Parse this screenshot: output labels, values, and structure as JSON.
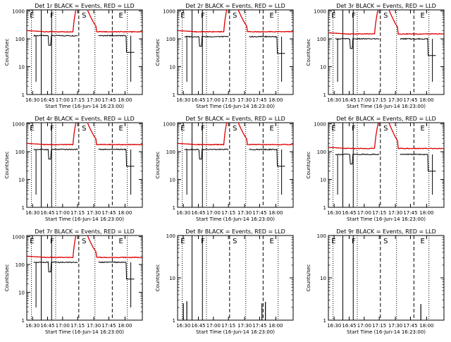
{
  "chart_data": [
    {
      "type": "line",
      "title": "Det 1r BLACK = Events, RED = LLD",
      "ylabel": "Counts/sec",
      "xlabel": "Start Time (16-Jun-14 16:23:00)",
      "x_ticks": [
        "16:30",
        "16:45",
        "17:00",
        "17:15",
        "17:30",
        "17:45",
        "18:00"
      ],
      "y_ticks": [
        "1",
        "10",
        "100",
        "1000"
      ],
      "ylog": true,
      "ylim": [
        1,
        1100
      ],
      "markers": [
        "E",
        "F",
        "S",
        "E"
      ],
      "red_base": 180,
      "black_base": 130,
      "has_red": true
    },
    {
      "type": "line",
      "title": "Det 2r BLACK = Events, RED = LLD",
      "ylabel": "Counts/sec",
      "xlabel": "Start Time (16-Jun-14 16:23:00)",
      "x_ticks": [
        "16:30",
        "16:45",
        "17:00",
        "17:15",
        "17:30",
        "17:45",
        "18:00"
      ],
      "y_ticks": [
        "1",
        "10",
        "100",
        "1000"
      ],
      "ylog": true,
      "ylim": [
        1,
        1100
      ],
      "markers": [
        "E",
        "F",
        "S",
        "E"
      ],
      "red_base": 180,
      "black_base": 120,
      "has_red": true
    },
    {
      "type": "line",
      "title": "Det 3r BLACK = Events, RED = LLD",
      "ylabel": "Counts/sec",
      "xlabel": "Start Time (16-Jun-14 16:23:00)",
      "x_ticks": [
        "16:30",
        "16:45",
        "17:00",
        "17:15",
        "17:30",
        "17:45",
        "18:00"
      ],
      "y_ticks": [
        "1",
        "10",
        "100",
        "1000"
      ],
      "ylog": true,
      "ylim": [
        1,
        1100
      ],
      "markers": [
        "E",
        "F",
        "S",
        "E"
      ],
      "red_base": 150,
      "black_base": 100,
      "has_red": true
    },
    {
      "type": "line",
      "title": "Det 4r BLACK = Events, RED = LLD",
      "ylabel": "Counts/sec",
      "xlabel": "Start Time (16-Jun-14 16:23:00)",
      "x_ticks": [
        "16:30",
        "16:45",
        "17:00",
        "17:15",
        "17:30",
        "17:45",
        "18:00"
      ],
      "y_ticks": [
        "1",
        "10",
        "100",
        "1000"
      ],
      "ylog": true,
      "ylim": [
        1,
        1100
      ],
      "markers": [
        "E",
        "F",
        "S",
        "E"
      ],
      "red_base": 180,
      "black_base": 120,
      "has_red": true
    },
    {
      "type": "line",
      "title": "Det 5r BLACK = Events, RED = LLD",
      "ylabel": "Counts/sec",
      "xlabel": "Start Time (16-Jun-14 16:23:00)",
      "x_ticks": [
        "16:30",
        "16:45",
        "17:00",
        "17:15",
        "17:30",
        "17:45",
        "18:00"
      ],
      "y_ticks": [
        "1",
        "10",
        "100",
        "1000"
      ],
      "ylog": true,
      "ylim": [
        1,
        1100
      ],
      "markers": [
        "E",
        "F",
        "S",
        "E"
      ],
      "red_base": 180,
      "black_base": 120,
      "has_red": true
    },
    {
      "type": "line",
      "title": "Det 6r BLACK = Events, RED = LLD",
      "ylabel": "Counts/sec",
      "xlabel": "Start Time (16-Jun-14 16:23:00)",
      "x_ticks": [
        "16:30",
        "16:45",
        "17:00",
        "17:15",
        "17:30",
        "17:45",
        "18:00"
      ],
      "y_ticks": [
        "1",
        "10",
        "100",
        "1000"
      ],
      "ylog": true,
      "ylim": [
        1,
        1100
      ],
      "markers": [
        "E",
        "F",
        "S",
        "E"
      ],
      "red_base": 130,
      "black_base": 80,
      "has_red": true
    },
    {
      "type": "line",
      "title": "Det 7r BLACK = Events, RED = LLD",
      "ylabel": "Counts/sec",
      "xlabel": "Start Time (16-Jun-14 16:23:00)",
      "x_ticks": [
        "16:30",
        "16:45",
        "17:00",
        "17:15",
        "17:30",
        "17:45",
        "18:00"
      ],
      "y_ticks": [
        "1",
        "10",
        "100",
        "1000"
      ],
      "ylog": true,
      "ylim": [
        1,
        1100
      ],
      "markers": [
        "E",
        "F",
        "S",
        "E"
      ],
      "red_base": 180,
      "black_base": 120,
      "has_red": true
    },
    {
      "type": "line",
      "title": "Det 8r BLACK = Events, RED = LLD",
      "ylabel": "Counts/sec",
      "xlabel": "Start Time (16-Jun-14 16:23:00)",
      "x_ticks": [
        "16:30",
        "16:45",
        "17:00",
        "17:15",
        "17:30",
        "17:45",
        "18:00"
      ],
      "y_ticks": [
        "1",
        "10",
        "100"
      ],
      "ylog": true,
      "ylim": [
        1,
        100
      ],
      "markers": [
        "E",
        "F",
        "S",
        "E"
      ],
      "red_base": 0,
      "black_base": 0,
      "has_red": false
    },
    {
      "type": "line",
      "title": "Det 9r BLACK = Events, RED = LLD",
      "ylabel": "Counts/sec",
      "xlabel": "Start Time (16-Jun-14 16:23:00)",
      "x_ticks": [
        "16:30",
        "16:45",
        "17:00",
        "17:15",
        "17:30",
        "17:45",
        "18:00"
      ],
      "y_ticks": [
        "1",
        "10",
        "100"
      ],
      "ylog": true,
      "ylim": [
        1,
        100
      ],
      "markers": [
        "E",
        "F",
        "S",
        "E"
      ],
      "red_base": 0,
      "black_base": 0,
      "has_red": false
    }
  ],
  "colors": {
    "events": "#000000",
    "lld": "#dd0000",
    "axis": "#000000",
    "background": "#ffffff"
  }
}
